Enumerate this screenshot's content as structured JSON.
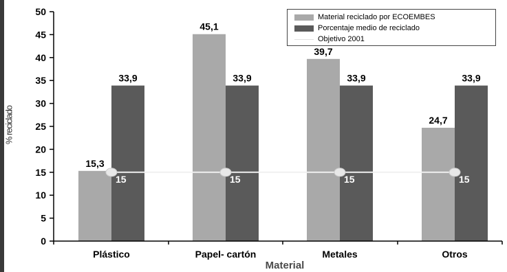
{
  "chart_data": {
    "type": "bar",
    "title": "",
    "xlabel": "Material",
    "ylabel": "% reciclado",
    "ylim": [
      0,
      50
    ],
    "yticks": [
      "0",
      "5",
      "10",
      "15",
      "20",
      "25",
      "30",
      "35",
      "40",
      "45",
      "50"
    ],
    "categories": [
      "Plástico",
      "Papel- cartón",
      "Metales",
      "Otros"
    ],
    "series": [
      {
        "name": "Material reciclado  por ECOEMBES",
        "values": [
          15.3,
          45.1,
          39.7,
          24.7
        ],
        "labels": [
          "15,3",
          "45,1",
          "39,7",
          "24,7"
        ],
        "color": "#a9a9a9"
      },
      {
        "name": "Porcentaje medio de reciclado",
        "values": [
          33.9,
          33.9,
          33.9,
          33.9
        ],
        "labels": [
          "33,9",
          "33,9",
          "33,9",
          "33,9"
        ],
        "color": "#5a5a5a"
      },
      {
        "name": "Objetivo 2001",
        "values": [
          15,
          15,
          15,
          15
        ],
        "labels": [
          "15",
          "15",
          "15",
          "15"
        ],
        "color": "#f0f0f0",
        "kind": "line"
      }
    ],
    "legend_position": "top-right",
    "grid": false
  }
}
